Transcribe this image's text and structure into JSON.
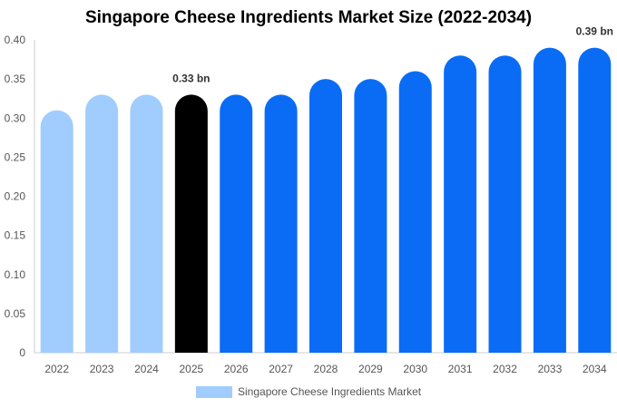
{
  "chart_data": {
    "type": "bar",
    "title": "Singapore Cheese Ingredients Market Size (2022-2034)",
    "categories": [
      "2022",
      "2023",
      "2024",
      "2025",
      "2026",
      "2027",
      "2028",
      "2029",
      "2030",
      "2031",
      "2032",
      "2033",
      "2034"
    ],
    "series": [
      {
        "name": "Singapore Cheese Ingredients Market",
        "values": [
          0.31,
          0.33,
          0.33,
          0.33,
          0.33,
          0.33,
          0.35,
          0.35,
          0.36,
          0.38,
          0.38,
          0.39,
          0.39
        ]
      }
    ],
    "bar_colors": [
      "#a0cdfd",
      "#a0cdfd",
      "#a0cdfd",
      "#000000",
      "#0a6cf5",
      "#0a6cf5",
      "#0a6cf5",
      "#0a6cf5",
      "#0a6cf5",
      "#0a6cf5",
      "#0a6cf5",
      "#0a6cf5",
      "#0a6cf5"
    ],
    "y_ticks": [
      "0",
      "0.05",
      "0.10",
      "0.15",
      "0.20",
      "0.25",
      "0.30",
      "0.35",
      "0.40"
    ],
    "ylim": [
      0,
      0.4
    ],
    "data_labels": [
      {
        "category": "2025",
        "text": "0.33 bn"
      },
      {
        "category": "2034",
        "text": "0.39 bn"
      }
    ],
    "legend": {
      "label": "Singapore Cheese Ingredients Market",
      "color": "#a0cdfd",
      "position": "bottom-center"
    },
    "grid": false,
    "xlabel": "",
    "ylabel": ""
  }
}
